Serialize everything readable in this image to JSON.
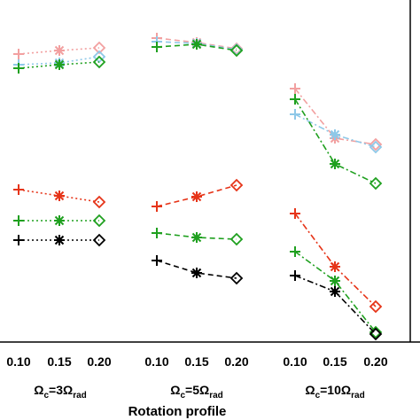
{
  "chart_data": {
    "type": "line",
    "xlabel": "Rotation profile",
    "groups": [
      {
        "id": "g3",
        "label_main": "Ω",
        "label_sub": "c",
        "label_mid": "=3Ω",
        "label_sub2": "rad",
        "x": [
          "0.10",
          "0.15",
          "0.20"
        ],
        "series": [
          {
            "key": "pink",
            "color": "#f2a0a0",
            "dash": "2,3",
            "y": [
              61,
              57,
              54
            ]
          },
          {
            "key": "blue",
            "color": "#8ec8e8",
            "dash": "2,3",
            "y": [
              73,
              71,
              64
            ]
          },
          {
            "key": "green",
            "color": "#1fa01f",
            "dash": "2,3",
            "y": [
              77,
              73,
              70
            ]
          },
          {
            "key": "red",
            "color": "#e63418",
            "dash": "2,3",
            "y": [
              214,
              221,
              228
            ]
          },
          {
            "key": "green2",
            "color": "#1fa01f",
            "dash": "2,3",
            "y": [
              249,
              249,
              249
            ]
          },
          {
            "key": "black",
            "color": "#000000",
            "dash": "2,3",
            "y": [
              271,
              271,
              271
            ]
          }
        ]
      },
      {
        "id": "g5",
        "label_main": "Ω",
        "label_sub": "c",
        "label_mid": "=5Ω",
        "label_sub2": "rad",
        "x": [
          "0.10",
          "0.15",
          "0.20"
        ],
        "series": [
          {
            "key": "pink",
            "color": "#f2a0a0",
            "dash": "6,4",
            "y": [
              43,
              48,
              55
            ]
          },
          {
            "key": "blue",
            "color": "#8ec8e8",
            "dash": "6,4",
            "y": [
              47,
              49,
              56
            ]
          },
          {
            "key": "green",
            "color": "#1fa01f",
            "dash": "6,4",
            "y": [
              53,
              50,
              57
            ]
          },
          {
            "key": "red",
            "color": "#e63418",
            "dash": "6,4",
            "y": [
              233,
              222,
              209
            ]
          },
          {
            "key": "green2",
            "color": "#1fa01f",
            "dash": "6,4",
            "y": [
              263,
              268,
              270
            ]
          },
          {
            "key": "black",
            "color": "#000000",
            "dash": "6,4",
            "y": [
              294,
              308,
              314
            ]
          }
        ]
      },
      {
        "id": "g10",
        "label_main": "Ω",
        "label_sub": "c",
        "label_mid": "=10Ω",
        "label_sub2": "rad",
        "x": [
          "0.10",
          "0.15",
          "0.20"
        ],
        "series": [
          {
            "key": "pink",
            "color": "#f2a0a0",
            "dash": "7,3,2,3",
            "y": [
              100,
              156,
              163
            ]
          },
          {
            "key": "blue",
            "color": "#8ec8e8",
            "dash": "7,3,2,3",
            "y": [
              129,
              152,
              166
            ]
          },
          {
            "key": "green",
            "color": "#1fa01f",
            "dash": "7,3,2,3",
            "y": [
              112,
              185,
              207
            ]
          },
          {
            "key": "red",
            "color": "#e63418",
            "dash": "7,3,2,3",
            "y": [
              241,
              301,
              346
            ]
          },
          {
            "key": "green2",
            "color": "#1fa01f",
            "dash": "7,3,2,3",
            "y": [
              284,
              317,
              375
            ]
          },
          {
            "key": "black",
            "color": "#000000",
            "dash": "7,3,2,3",
            "y": [
              311,
              329,
              377
            ]
          }
        ]
      }
    ],
    "markers": [
      "plus",
      "asterisk",
      "diamond"
    ],
    "grid": false
  }
}
